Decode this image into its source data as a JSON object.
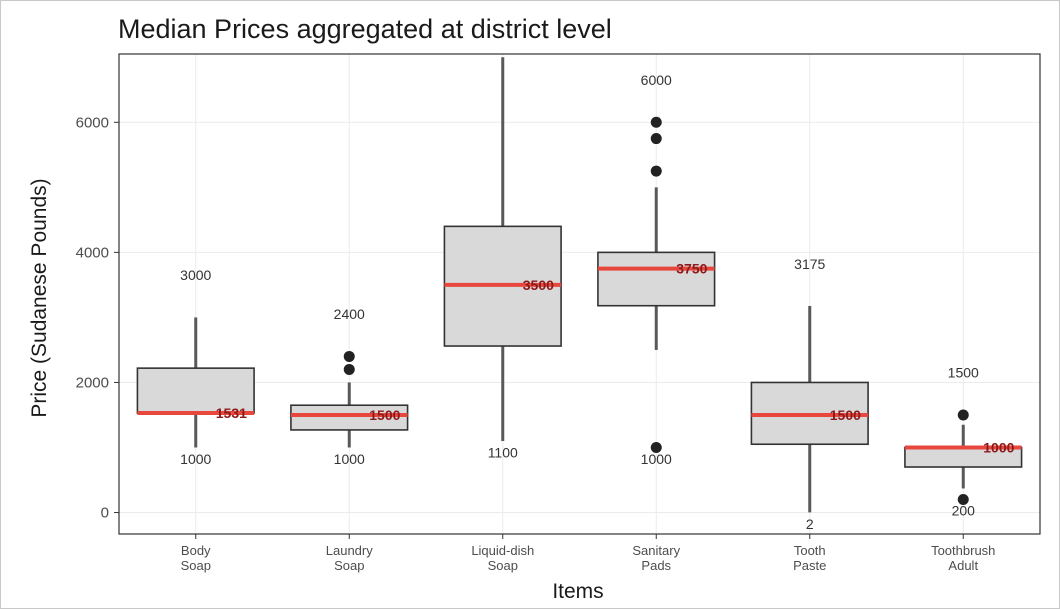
{
  "chart_data": {
    "type": "boxplot",
    "title": "Median Prices aggregated at district level",
    "xlabel": "Items",
    "ylabel": "Price (Sudanese Pounds)",
    "ylim": [
      -330,
      7050
    ],
    "yticks": [
      0,
      2000,
      4000,
      6000
    ],
    "ytick_labels": [
      "0",
      "2000",
      "4000",
      "6000"
    ],
    "grid": true,
    "colors": {
      "box_fill": "#d9d9d9",
      "box_stroke": "#333333",
      "median_line": "#e8473e",
      "whisker": "#595959",
      "outlier": "#222222"
    },
    "categories": [
      {
        "lines": [
          "Body",
          "Soap"
        ],
        "q1": 1530,
        "median": 1531,
        "q3": 2220,
        "whisker_low": 1000,
        "whisker_high": 3000,
        "outliers": [],
        "median_label": "1531",
        "max_label": "3000",
        "min_label": "1000",
        "max_label_y": 3650,
        "min_label_y": 820
      },
      {
        "lines": [
          "Laundry",
          "Soap"
        ],
        "q1": 1270,
        "median": 1500,
        "q3": 1650,
        "whisker_low": 1000,
        "whisker_high": 2000,
        "outliers": [
          2200,
          2400
        ],
        "median_label": "1500",
        "max_label": "2400",
        "min_label": "1000",
        "max_label_y": 3050,
        "min_label_y": 820
      },
      {
        "lines": [
          "Liquid-dish",
          "Soap"
        ],
        "q1": 2560,
        "median": 3500,
        "q3": 4400,
        "whisker_low": 1100,
        "whisker_high": 7000,
        "outliers": [],
        "median_label": "3500",
        "max_label": "",
        "min_label": "1100",
        "max_label_y": 0,
        "min_label_y": 920
      },
      {
        "lines": [
          "Sanitary",
          "Pads"
        ],
        "q1": 3180,
        "median": 3750,
        "q3": 4000,
        "whisker_low": 2500,
        "whisker_high": 5000,
        "outliers": [
          1000,
          5250,
          5750,
          6000
        ],
        "median_label": "3750",
        "max_label": "6000",
        "min_label": "1000",
        "max_label_y": 6650,
        "min_label_y": 820
      },
      {
        "lines": [
          "Tooth",
          "Paste"
        ],
        "q1": 1050,
        "median": 1500,
        "q3": 2000,
        "whisker_low": 2,
        "whisker_high": 3175,
        "outliers": [],
        "median_label": "1500",
        "max_label": "3175",
        "min_label": "2",
        "max_label_y": 3820,
        "min_label_y": -180
      },
      {
        "lines": [
          "Toothbrush",
          "Adult"
        ],
        "q1": 700,
        "median": 1000,
        "q3": 1000,
        "whisker_low": 370,
        "whisker_high": 1350,
        "outliers": [
          200,
          1500
        ],
        "median_label": "1000",
        "max_label": "1500",
        "min_label": "200",
        "max_label_y": 2150,
        "min_label_y": 30
      }
    ]
  }
}
